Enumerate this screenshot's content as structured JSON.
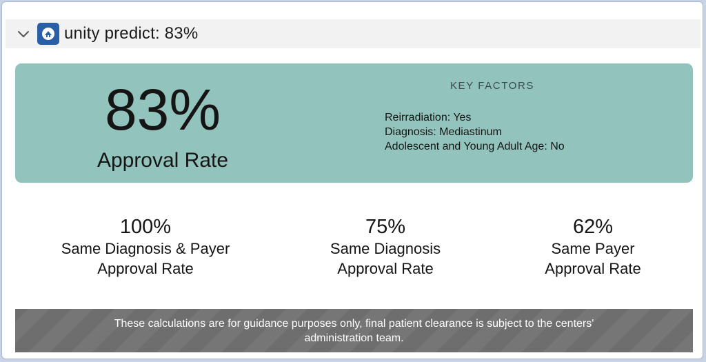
{
  "header": {
    "title": "unity predict: 83%",
    "collapse_icon": "chevron-down-icon",
    "app_icon": "unity-app-icon",
    "app_icon_color": "#2a5fa8"
  },
  "hero": {
    "background_color": "#92c4bd",
    "approval_percent": "83%",
    "approval_label": "Approval Rate",
    "key_factors_title": "KEY FACTORS",
    "key_factors": [
      "Reirradiation: Yes",
      "Diagnosis: Mediastinum",
      "Adolescent and Young Adult Age: No"
    ]
  },
  "stats": [
    {
      "percent": "100%",
      "line1": "Same Diagnosis & Payer",
      "line2": "Approval Rate"
    },
    {
      "percent": "75%",
      "line1": "Same Diagnosis",
      "line2": "Approval Rate"
    },
    {
      "percent": "62%",
      "line1": "Same Payer",
      "line2": "Approval Rate"
    }
  ],
  "disclaimer": {
    "line1": "These calculations are for guidance purposes only, final patient clearance is subject to the centers'",
    "line2": "administration team.",
    "background_color": "#6e6e6e"
  }
}
